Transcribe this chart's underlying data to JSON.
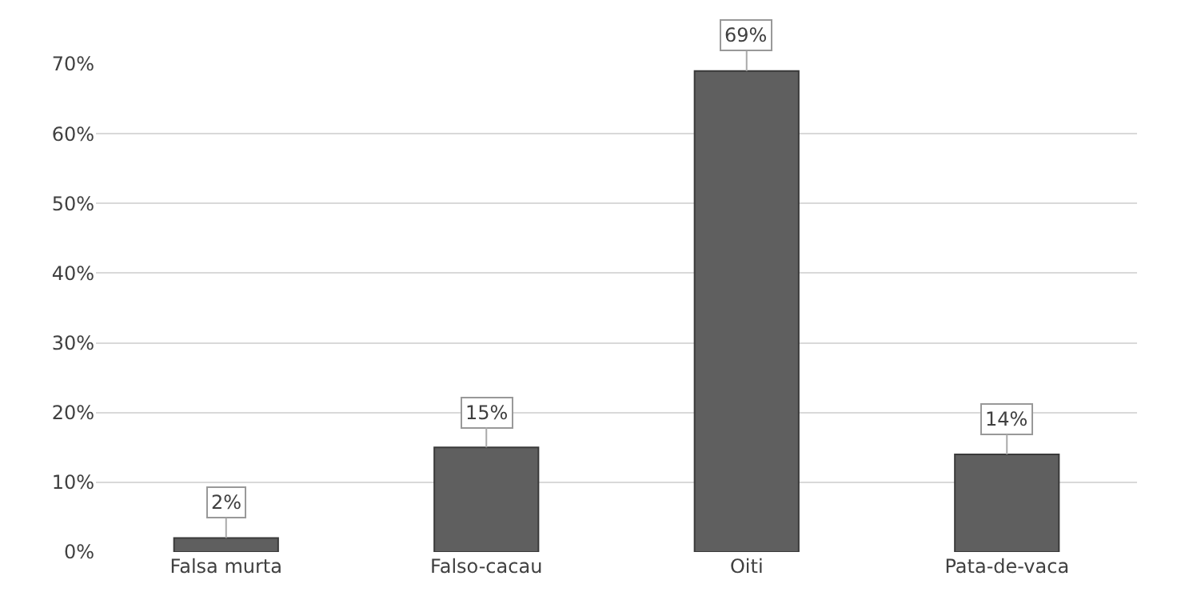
{
  "chart_data": {
    "type": "bar",
    "categories": [
      "Falsa murta",
      "Falso-cacau",
      "Oiti",
      "Pata-de-vaca"
    ],
    "values": [
      2,
      15,
      69,
      14
    ],
    "color": "#5f5f5f",
    "value_labels": [
      "2%",
      "15%",
      "69%",
      "14%"
    ],
    "ylim": [
      0,
      70
    ],
    "yticks": [
      {
        "value": 0,
        "label": "0%"
      },
      {
        "value": 10,
        "label": "10%"
      },
      {
        "value": 20,
        "label": "20%"
      },
      {
        "value": 30,
        "label": "30%"
      },
      {
        "value": 40,
        "label": "40%"
      },
      {
        "value": 50,
        "label": "50%"
      },
      {
        "value": 60,
        "label": "60%"
      },
      {
        "value": 70,
        "label": "70%"
      }
    ],
    "grid": "y",
    "legend": false
  }
}
